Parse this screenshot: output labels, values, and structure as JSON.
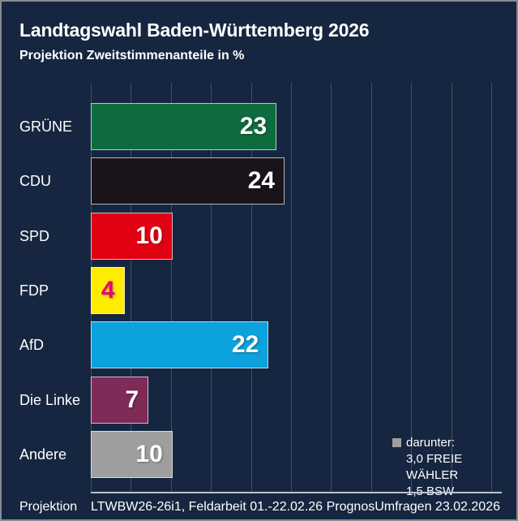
{
  "header": {
    "title": "Landtagswahl Baden-Württemberg 2026",
    "subtitle": "Projektion Zweitstimmenanteile in %"
  },
  "chart_data": {
    "type": "bar",
    "orientation": "horizontal",
    "title": "Landtagswahl Baden-Württemberg 2026",
    "subtitle": "Projektion Zweitstimmenanteile in %",
    "categories": [
      "GRÜNE",
      "CDU",
      "SPD",
      "FDP",
      "AfD",
      "Die Linke",
      "Andere"
    ],
    "values": [
      23,
      24,
      10,
      4,
      22,
      7,
      10
    ],
    "value_unit": "%",
    "xlim": [
      0,
      50
    ],
    "grid_step": 5,
    "grid": true,
    "bar_colors": [
      "#0e6b3e",
      "#1a141a",
      "#e20013",
      "#ffec00",
      "#0ba2dd",
      "#7f2a57",
      "#9e9e9e"
    ],
    "value_text_colors": [
      "#ffffff",
      "#ffffff",
      "#ffffff",
      "#e5007d",
      "#ffffff",
      "#ffffff",
      "#ffffff"
    ],
    "annotation": [
      "darunter:",
      "3,0 FREIE WÄHLER",
      "1,5 BSW"
    ]
  },
  "annotation": {
    "marker_color": "#9e9e9e",
    "lines": [
      "darunter:",
      "3,0 FREIE WÄHLER",
      "1,5 BSW"
    ]
  },
  "footer": {
    "left": "Projektion",
    "center": "LTWBW26-26i1, Feldarbeit 01.-22.02.26",
    "right": "PrognosUmfragen 23.02.2026"
  },
  "colors": {
    "background": "#162640",
    "gridline": "#3f4f68",
    "axis_line": "#b9c3d1",
    "text": "#ffffff",
    "page_border": "#878b91"
  }
}
